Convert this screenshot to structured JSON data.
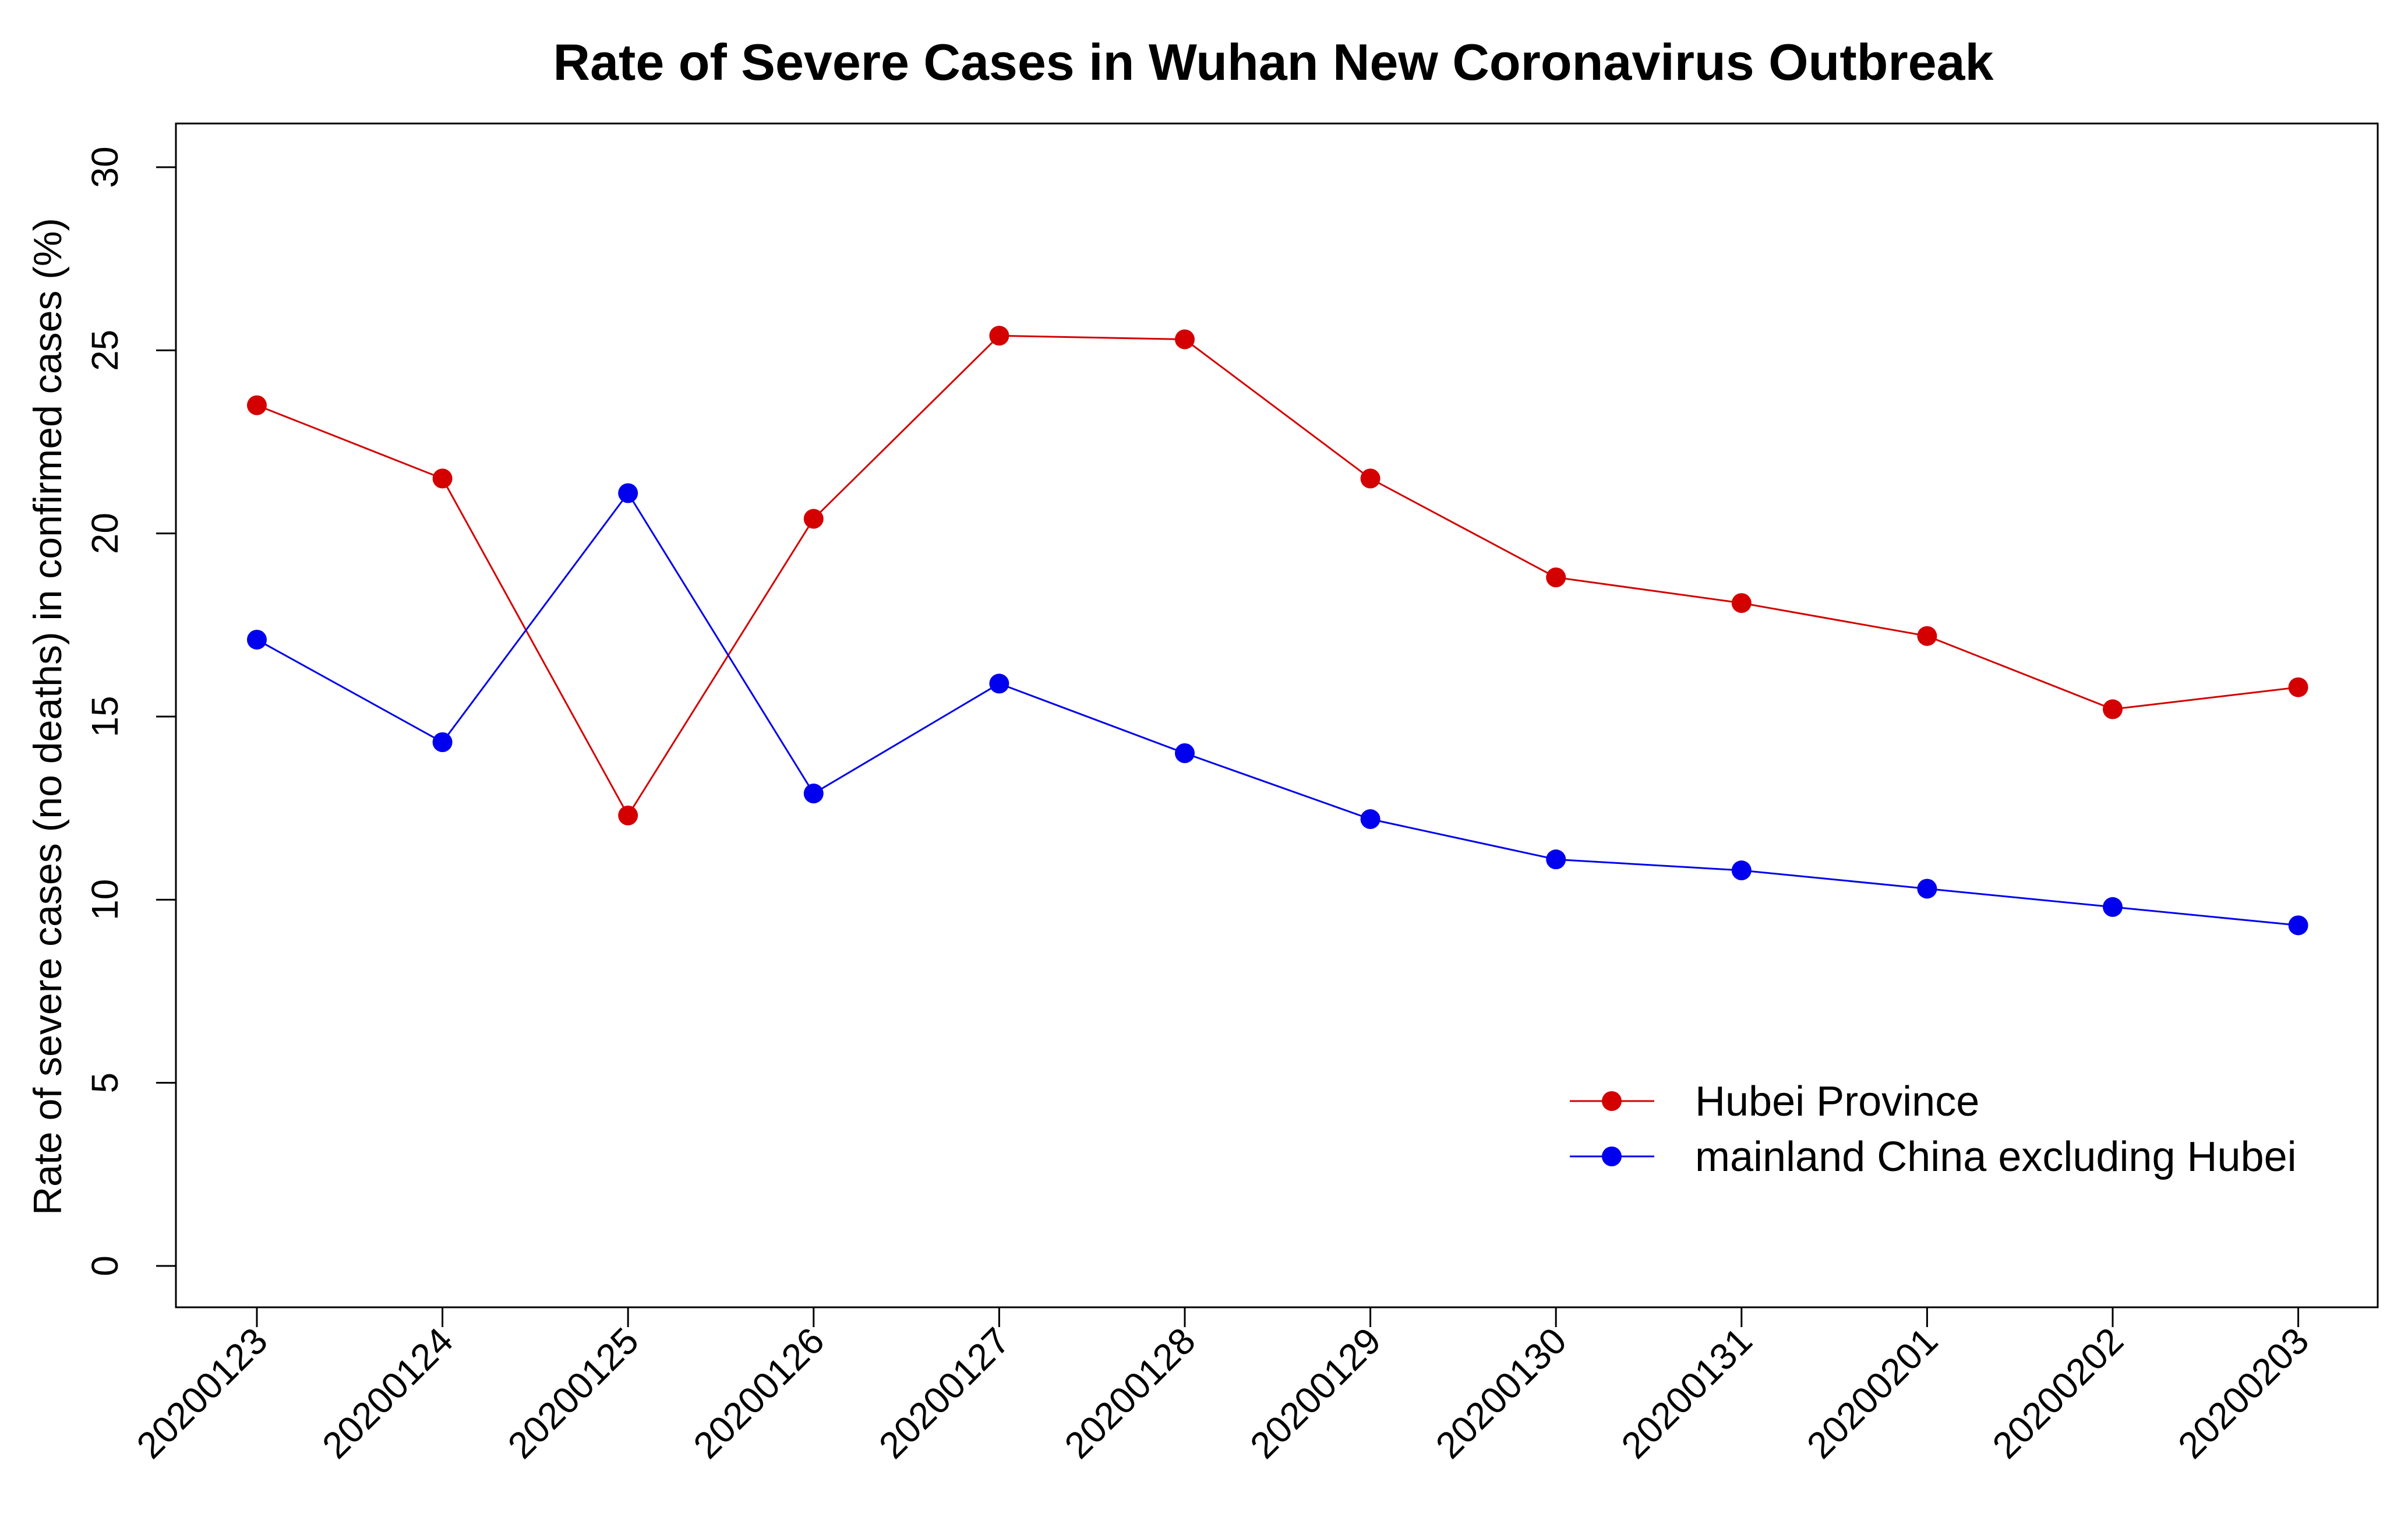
{
  "chart_data": {
    "type": "line",
    "title": "Rate of Severe Cases in Wuhan New Coronavirus Outbreak",
    "xlabel": "",
    "ylabel": "Rate of severe cases (no deaths) in confirmed cases (%)",
    "categories": [
      "20200123",
      "20200124",
      "20200125",
      "20200126",
      "20200127",
      "20200128",
      "20200129",
      "20200130",
      "20200131",
      "20200201",
      "20200202",
      "20200203"
    ],
    "ylim": [
      0,
      30
    ],
    "yticks": [
      0,
      5,
      10,
      15,
      20,
      25,
      30
    ],
    "grid": false,
    "legend_position": "bottom-right",
    "series": [
      {
        "name": "Hubei Province",
        "color": "#d40000",
        "values": [
          23.5,
          21.5,
          12.3,
          20.4,
          25.4,
          25.3,
          21.5,
          18.8,
          18.1,
          17.2,
          15.2,
          15.8
        ]
      },
      {
        "name": "mainland China excluding Hubei",
        "color": "#0000ee",
        "values": [
          17.1,
          14.3,
          21.1,
          12.9,
          15.9,
          14.0,
          12.2,
          11.1,
          10.8,
          10.3,
          9.8,
          9.3
        ]
      }
    ]
  }
}
